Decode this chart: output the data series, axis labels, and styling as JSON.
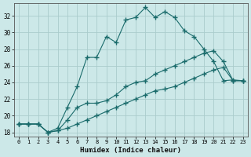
{
  "xlabel": "Humidex (Indice chaleur)",
  "bg_color": "#cce8e8",
  "line_color": "#1a6b6b",
  "grid_color": "#aacccc",
  "ylim": [
    17.5,
    33.5
  ],
  "xlim": [
    -0.5,
    23.5
  ],
  "yticks": [
    18,
    20,
    22,
    24,
    26,
    28,
    30,
    32
  ],
  "xticks": [
    0,
    1,
    2,
    3,
    4,
    5,
    6,
    7,
    8,
    9,
    10,
    11,
    12,
    13,
    14,
    15,
    16,
    17,
    18,
    19,
    20,
    21,
    22,
    23
  ],
  "line1_x": [
    0,
    1,
    2,
    3,
    4,
    5,
    6,
    7,
    8,
    9,
    10,
    11,
    12,
    13,
    14,
    15,
    16,
    17,
    18,
    19,
    20,
    21,
    22,
    23
  ],
  "line1_y": [
    19.0,
    19.0,
    19.0,
    18.0,
    18.5,
    21.0,
    23.5,
    27.0,
    27.0,
    29.5,
    28.8,
    31.5,
    31.8,
    33.0,
    31.8,
    32.5,
    31.8,
    30.2,
    29.5,
    28.0,
    26.5,
    24.2,
    24.3,
    24.2
  ],
  "line2_x": [
    0,
    1,
    2,
    3,
    4,
    5,
    6,
    7,
    8,
    9,
    10,
    11,
    12,
    13,
    14,
    15,
    16,
    17,
    18,
    19,
    20,
    21,
    22,
    23
  ],
  "line2_y": [
    19.0,
    19.0,
    19.0,
    18.0,
    18.2,
    19.5,
    21.0,
    21.5,
    21.5,
    21.8,
    22.5,
    23.5,
    24.0,
    24.2,
    25.0,
    25.5,
    26.0,
    26.5,
    27.0,
    27.5,
    27.8,
    26.5,
    24.2,
    24.2
  ],
  "line3_x": [
    0,
    1,
    2,
    3,
    4,
    5,
    6,
    7,
    8,
    9,
    10,
    11,
    12,
    13,
    14,
    15,
    16,
    17,
    18,
    19,
    20,
    21,
    22,
    23
  ],
  "line3_y": [
    19.0,
    19.0,
    19.0,
    18.0,
    18.2,
    18.5,
    19.0,
    19.5,
    20.0,
    20.5,
    21.0,
    21.5,
    22.0,
    22.5,
    23.0,
    23.2,
    23.5,
    24.0,
    24.5,
    25.0,
    25.5,
    25.8,
    24.2,
    24.2
  ]
}
